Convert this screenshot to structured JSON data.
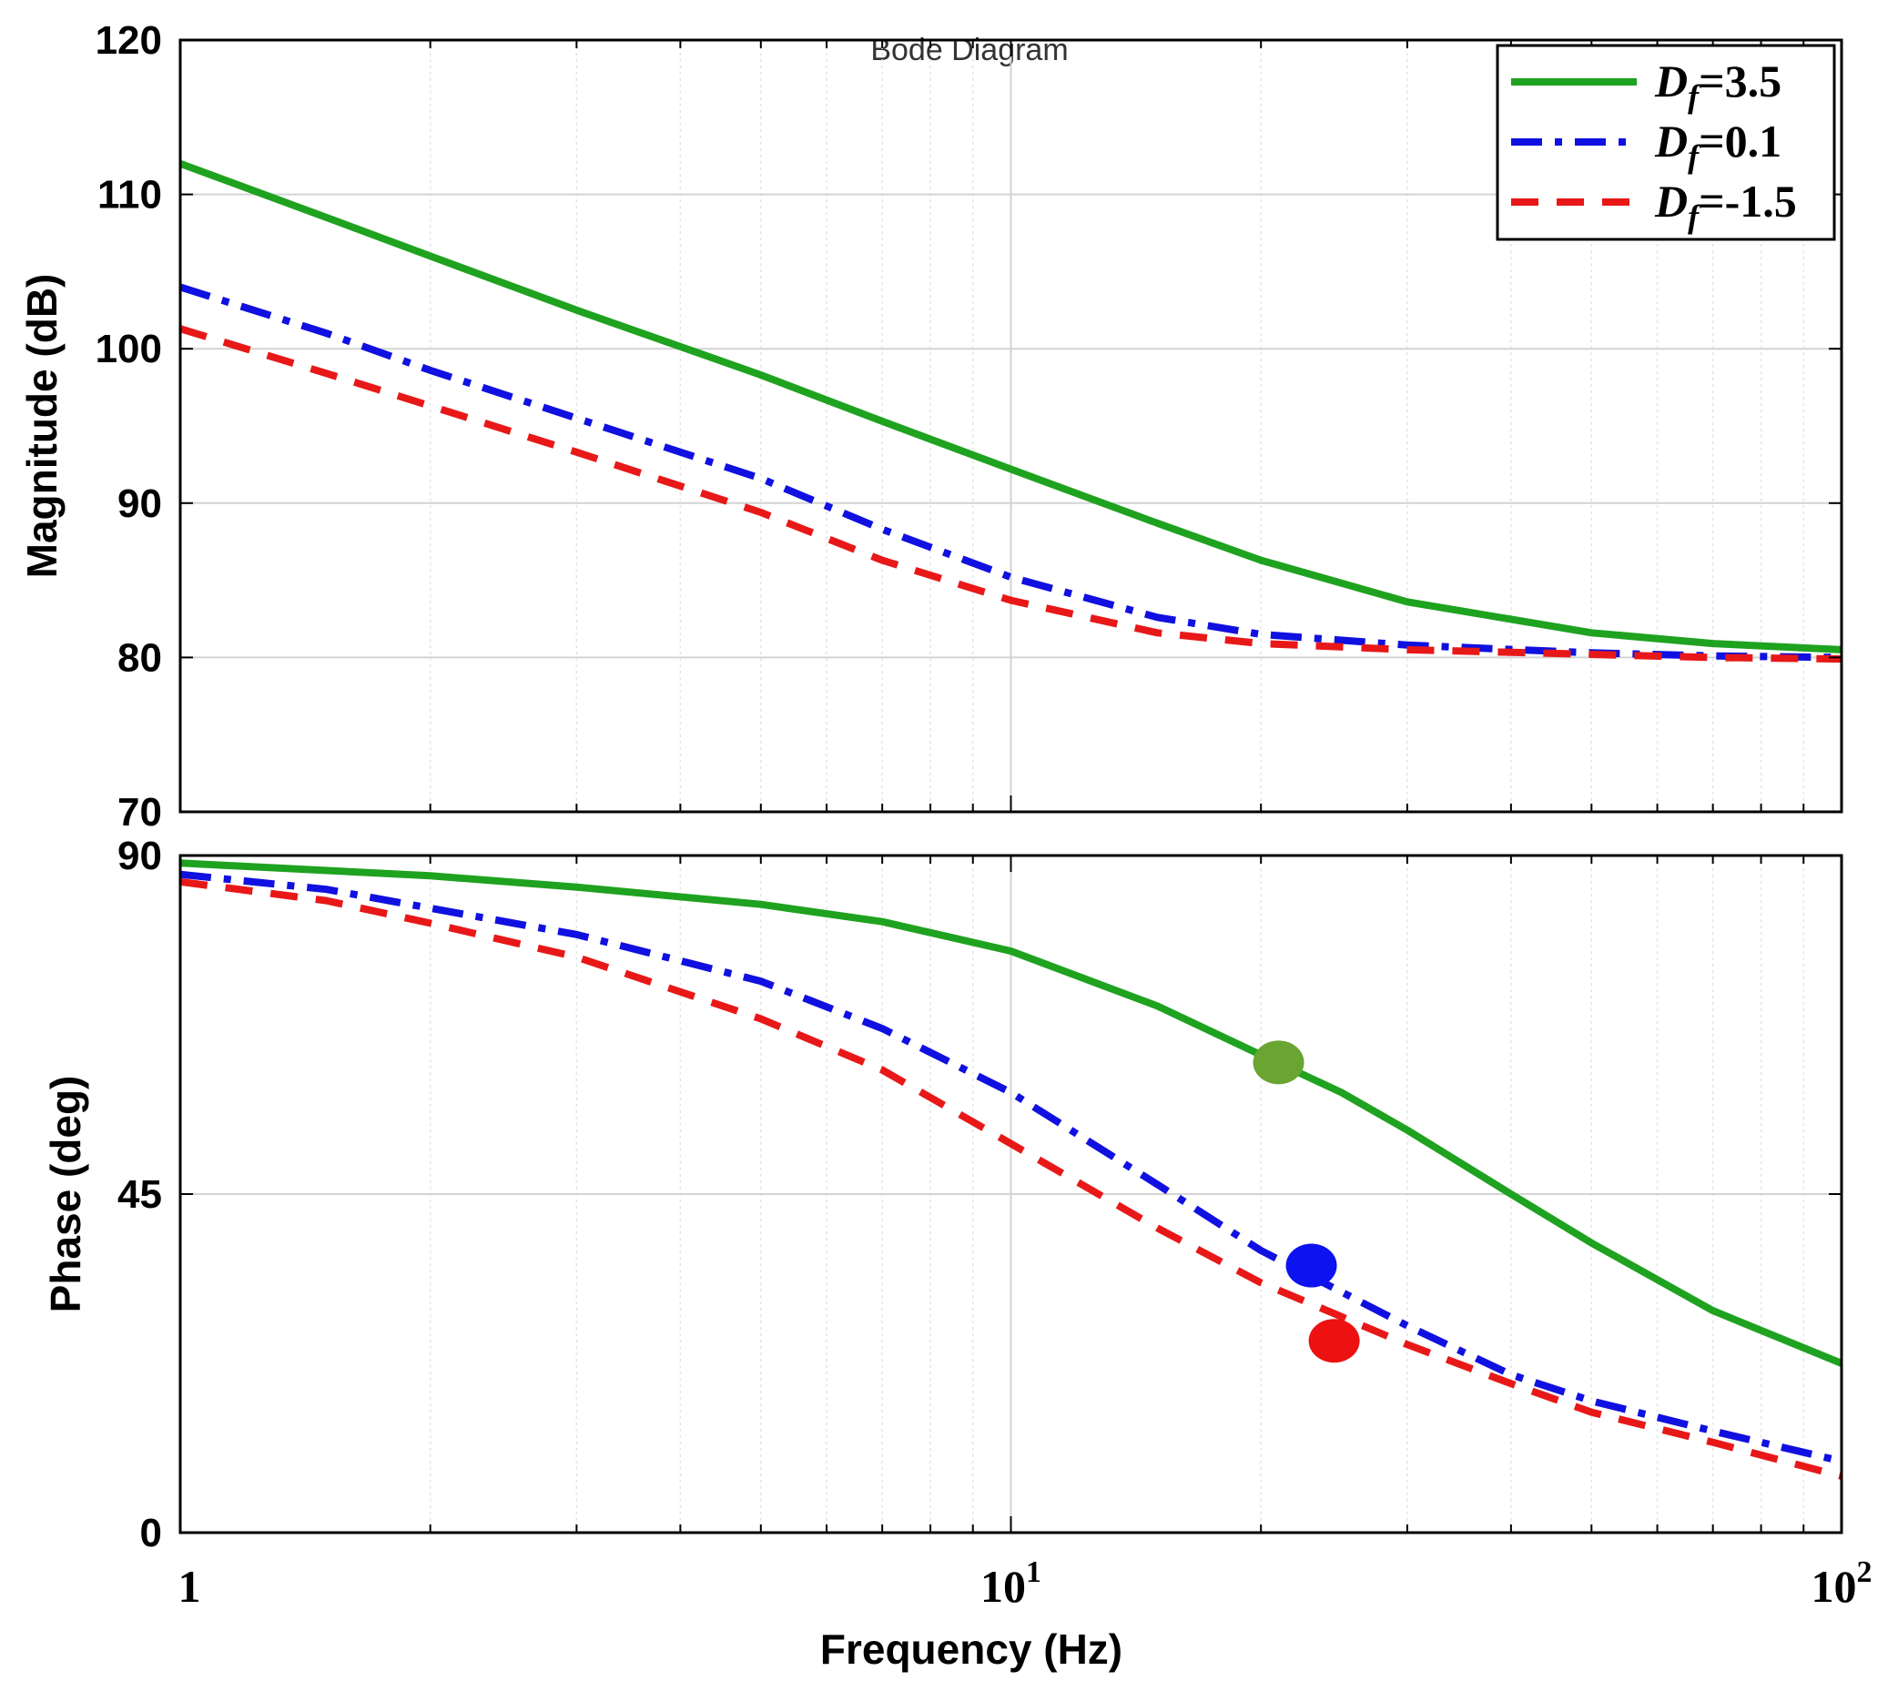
{
  "chart_data": {
    "type": "line",
    "title": "Bode Diagram",
    "xlabel": "Frequency (Hz)",
    "x_scale": "log",
    "xlim": [
      1,
      100
    ],
    "x_ticks": [
      {
        "value": 1,
        "label": "1"
      },
      {
        "value": 10,
        "label": "10",
        "sup": "1"
      },
      {
        "value": 100,
        "label": "10",
        "sup": "2"
      }
    ],
    "legend": {
      "placement": "top-right",
      "entries": [
        {
          "series": "Df_3.5",
          "label": "D",
          "sub": "f",
          "rest": "=3.5"
        },
        {
          "series": "Df_0.1",
          "label": "D",
          "sub": "f",
          "rest": "=0.1"
        },
        {
          "series": "Df_-1.5",
          "label": "D",
          "sub": "f",
          "rest": "=-1.5"
        }
      ]
    },
    "series_styles": [
      {
        "name": "Df_3.5",
        "color": "#1fa21f",
        "dash": "solid"
      },
      {
        "name": "Df_0.1",
        "color": "#1010e0",
        "dash": "dashdot"
      },
      {
        "name": "Df_-1.5",
        "color": "#e81818",
        "dash": "dashed"
      }
    ],
    "panels": [
      {
        "id": "magnitude",
        "ylabel": "Magnitude (dB)",
        "ylim": [
          70,
          120
        ],
        "y_ticks": [
          70,
          80,
          90,
          100,
          110,
          120
        ],
        "series": [
          {
            "name": "Df_3.5",
            "points": [
              [
                1,
                112
              ],
              [
                1.5,
                108.5
              ],
              [
                2,
                106
              ],
              [
                3,
                102.5
              ],
              [
                5,
                98.3
              ],
              [
                7,
                95.3
              ],
              [
                10,
                92.2
              ],
              [
                15,
                88.7
              ],
              [
                20,
                86.3
              ],
              [
                30,
                83.6
              ],
              [
                50,
                81.6
              ],
              [
                70,
                80.9
              ],
              [
                100,
                80.5
              ]
            ]
          },
          {
            "name": "Df_0.1",
            "points": [
              [
                1,
                104
              ],
              [
                1.5,
                101
              ],
              [
                2,
                98.6
              ],
              [
                3,
                95.5
              ],
              [
                5,
                91.6
              ],
              [
                7,
                88.3
              ],
              [
                10,
                85.2
              ],
              [
                15,
                82.6
              ],
              [
                20,
                81.5
              ],
              [
                30,
                80.8
              ],
              [
                50,
                80.3
              ],
              [
                70,
                80.1
              ],
              [
                100,
                80
              ]
            ]
          },
          {
            "name": "Df_-1.5",
            "points": [
              [
                1,
                101.3
              ],
              [
                1.5,
                98.4
              ],
              [
                2,
                96.3
              ],
              [
                3,
                93.3
              ],
              [
                5,
                89.4
              ],
              [
                7,
                86.3
              ],
              [
                10,
                83.7
              ],
              [
                15,
                81.6
              ],
              [
                20,
                80.9
              ],
              [
                30,
                80.5
              ],
              [
                50,
                80.2
              ],
              [
                70,
                80
              ],
              [
                100,
                79.9
              ]
            ]
          }
        ]
      },
      {
        "id": "phase",
        "ylabel": "Phase (deg)",
        "ylim": [
          0,
          90
        ],
        "y_ticks": [
          0,
          45,
          90
        ],
        "series": [
          {
            "name": "Df_3.5",
            "points": [
              [
                1,
                89
              ],
              [
                2,
                87.3
              ],
              [
                3,
                85.8
              ],
              [
                5,
                83.5
              ],
              [
                7,
                81.2
              ],
              [
                10,
                77.3
              ],
              [
                15,
                70
              ],
              [
                20,
                63.5
              ],
              [
                25,
                58.5
              ],
              [
                30,
                53.5
              ],
              [
                40,
                45
              ],
              [
                50,
                38.5
              ],
              [
                70,
                29.5
              ],
              [
                100,
                22.5
              ]
            ]
          },
          {
            "name": "Df_0.1",
            "points": [
              [
                1,
                87.5
              ],
              [
                1.5,
                85.5
              ],
              [
                2,
                83
              ],
              [
                3,
                79.5
              ],
              [
                5,
                73.3
              ],
              [
                7,
                67
              ],
              [
                10,
                58.5
              ],
              [
                15,
                46.3
              ],
              [
                20,
                37.5
              ],
              [
                25,
                32
              ],
              [
                30,
                27.5
              ],
              [
                40,
                21
              ],
              [
                50,
                17.5
              ],
              [
                70,
                13.5
              ],
              [
                100,
                9.5
              ]
            ]
          },
          {
            "name": "Df_-1.5",
            "points": [
              [
                1,
                86.5
              ],
              [
                1.5,
                84
              ],
              [
                2,
                81
              ],
              [
                3,
                76.5
              ],
              [
                5,
                68.3
              ],
              [
                7,
                61.5
              ],
              [
                10,
                51.7
              ],
              [
                15,
                40.5
              ],
              [
                20,
                33.2
              ],
              [
                25,
                28.7
              ],
              [
                30,
                25
              ],
              [
                40,
                19.8
              ],
              [
                50,
                16
              ],
              [
                70,
                12
              ],
              [
                100,
                7.5
              ]
            ]
          }
        ],
        "markers": [
          {
            "series": "Df_3.5",
            "x": 21,
            "y": 62.5,
            "color": "#6aa532"
          },
          {
            "series": "Df_0.1",
            "x": 23,
            "y": 35.5,
            "color": "#0d12f0"
          },
          {
            "series": "Df_-1.5",
            "x": 24.5,
            "y": 25.5,
            "color": "#ee1111"
          }
        ]
      }
    ]
  }
}
